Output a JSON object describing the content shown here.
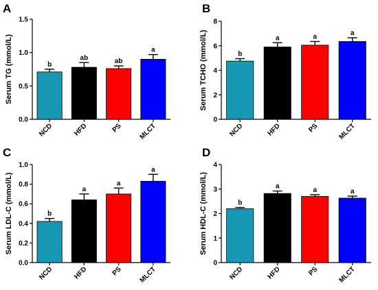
{
  "chart_data": [
    {
      "panel": "A",
      "type": "bar",
      "ylabel": "Serum TG (mmol/L)",
      "categories": [
        "NCD",
        "HFD",
        "PS",
        "MLCT"
      ],
      "values": [
        0.71,
        0.78,
        0.76,
        0.9
      ],
      "errors": [
        0.04,
        0.07,
        0.04,
        0.07
      ],
      "significance": [
        "b",
        "ab",
        "ab",
        "a"
      ],
      "ylim": [
        0,
        1.5
      ],
      "yticks": [
        "0.0",
        "0.5",
        "1.0",
        "1.5"
      ],
      "yticks_values": [
        0,
        0.5,
        1.0,
        1.5
      ]
    },
    {
      "panel": "B",
      "type": "bar",
      "ylabel": "Serum TCHO (mmol/L)",
      "categories": [
        "NCD",
        "HFD",
        "PS",
        "MLCT"
      ],
      "values": [
        4.75,
        5.9,
        6.05,
        6.35
      ],
      "errors": [
        0.2,
        0.35,
        0.3,
        0.3
      ],
      "significance": [
        "b",
        "a",
        "a",
        "a"
      ],
      "ylim": [
        0,
        8
      ],
      "yticks": [
        "0",
        "2",
        "4",
        "6",
        "8"
      ],
      "yticks_values": [
        0,
        2,
        4,
        6,
        8
      ]
    },
    {
      "panel": "C",
      "type": "bar",
      "ylabel": "Serum LDL-C (mmol/L)",
      "categories": [
        "NCD",
        "HFD",
        "PS",
        "MLCT"
      ],
      "values": [
        0.42,
        0.64,
        0.7,
        0.83
      ],
      "errors": [
        0.03,
        0.06,
        0.06,
        0.07
      ],
      "significance": [
        "b",
        "a",
        "a",
        "a"
      ],
      "ylim": [
        0,
        1.0
      ],
      "yticks": [
        "0.0",
        "0.2",
        "0.4",
        "0.6",
        "0.8",
        "1.0"
      ],
      "yticks_values": [
        0,
        0.2,
        0.4,
        0.6,
        0.8,
        1.0
      ]
    },
    {
      "panel": "D",
      "type": "bar",
      "ylabel": "Serum HDL-C (mmol/L)",
      "categories": [
        "NCD",
        "HFD",
        "PS",
        "MLCT"
      ],
      "values": [
        2.2,
        2.82,
        2.7,
        2.63
      ],
      "errors": [
        0.05,
        0.1,
        0.07,
        0.08
      ],
      "significance": [
        "b",
        "a",
        "a",
        "a"
      ],
      "ylim": [
        0,
        4
      ],
      "yticks": [
        "0",
        "1",
        "2",
        "3",
        "4"
      ],
      "yticks_values": [
        0,
        1,
        2,
        3,
        4
      ]
    }
  ],
  "colors": {
    "NCD": "#1798b4",
    "HFD": "#000000",
    "PS": "#ff0000",
    "MLCT": "#0000ff"
  }
}
